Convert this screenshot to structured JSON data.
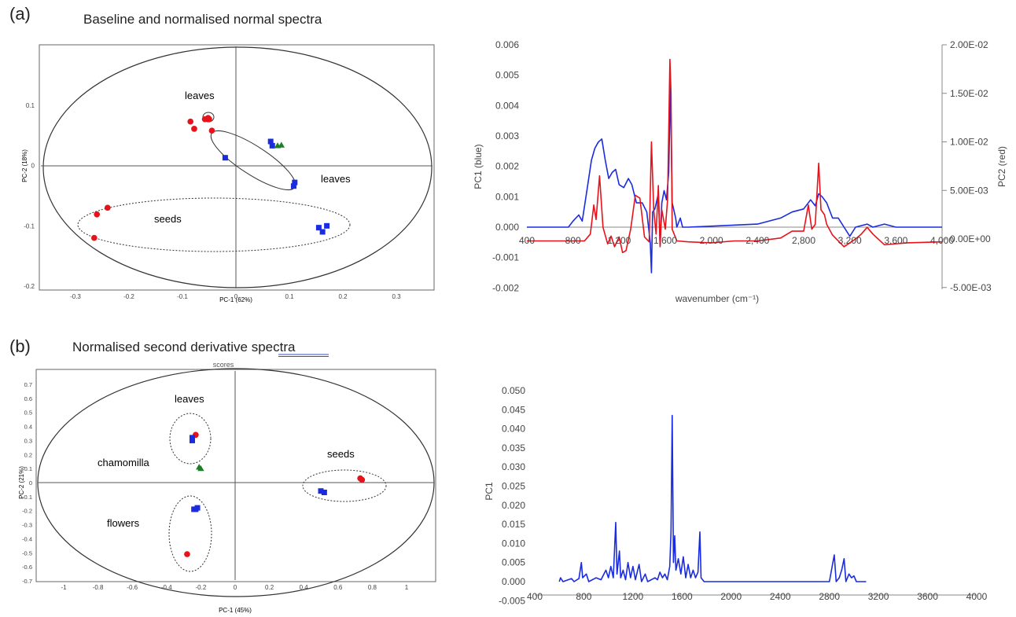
{
  "panel_a": {
    "letter": "(a)",
    "title": "Baseline and normalised normal spectra"
  },
  "panel_b": {
    "letter": "(b)",
    "title": "Normalised second derivative spectra",
    "partial_text": "scores"
  },
  "colors": {
    "red": "#e8121a",
    "blue": "#1a2be0",
    "green": "#1d7d28",
    "cyan": "#22a5e0",
    "axis": "#666666"
  },
  "chart_data": [
    {
      "type": "scatter",
      "xlabel": "PC-1 (62%)",
      "ylabel": "PC-2 (18%)",
      "xlim": [
        -0.37,
        0.37
      ],
      "ylim": [
        -0.2,
        0.2
      ],
      "x_ticks": [
        "-0.3",
        "-0.2",
        "-0.1",
        "0",
        "0.1",
        "0.2",
        "0.3"
      ],
      "y_ticks": [
        "0.1",
        "0",
        "-0.1",
        "-0.2"
      ],
      "annotations": [
        "leaves",
        "leaves",
        "seeds"
      ],
      "series": [
        {
          "marker": "circle",
          "color": "red",
          "points": [
            [
              -0.085,
              0.073
            ],
            [
              -0.078,
              0.061
            ],
            [
              -0.058,
              0.077
            ],
            [
              -0.052,
              0.079
            ],
            [
              -0.05,
              0.077
            ],
            [
              -0.045,
              0.058
            ],
            [
              -0.24,
              -0.07
            ],
            [
              -0.26,
              -0.081
            ],
            [
              -0.265,
              -0.12
            ]
          ]
        },
        {
          "marker": "square",
          "color": "blue",
          "points": [
            [
              0.065,
              0.04
            ],
            [
              0.068,
              0.033
            ],
            [
              -0.02,
              0.013
            ],
            [
              0.11,
              -0.028
            ],
            [
              0.108,
              -0.034
            ],
            [
              0.155,
              -0.103
            ],
            [
              0.162,
              -0.11
            ],
            [
              0.17,
              -0.1
            ]
          ]
        },
        {
          "marker": "triangle",
          "color": "green",
          "points": [
            [
              0.078,
              0.033
            ],
            [
              0.085,
              0.034
            ]
          ]
        }
      ]
    },
    {
      "type": "line",
      "xlabel": "wavenumber (cm⁻¹)",
      "ylabel": "PC1 (blue)",
      "y2label": "PC2 (red)",
      "xlim": [
        400,
        4000
      ],
      "ylim": [
        -0.002,
        0.006
      ],
      "y2lim": [
        -0.005,
        0.02
      ],
      "x_ticks": [
        "400",
        "800",
        "1,200",
        "1,600",
        "2,000",
        "2,400",
        "2,800",
        "3,200",
        "3,600",
        "4,000"
      ],
      "y_ticks": [
        "0.006",
        "0.005",
        "0.004",
        "0.003",
        "0.002",
        "0.001",
        "0.000",
        "-0.001",
        "-0.002"
      ],
      "y2_ticks": [
        "2.00E-02",
        "1.50E-02",
        "1.00E-02",
        "5.00E-03",
        "0.00E+00",
        "-5.00E-03"
      ],
      "series": [
        {
          "color": "blue",
          "axis": "left",
          "points": [
            [
              400,
              0
            ],
            [
              760,
              0
            ],
            [
              800,
              0.0002
            ],
            [
              850,
              0.0004
            ],
            [
              880,
              0.0002
            ],
            [
              920,
              0.0012
            ],
            [
              960,
              0.0022
            ],
            [
              990,
              0.0026
            ],
            [
              1020,
              0.0028
            ],
            [
              1050,
              0.0029
            ],
            [
              1080,
              0.0022
            ],
            [
              1110,
              0.0016
            ],
            [
              1140,
              0.0018
            ],
            [
              1170,
              0.0019
            ],
            [
              1200,
              0.0014
            ],
            [
              1240,
              0.0013
            ],
            [
              1280,
              0.0016
            ],
            [
              1310,
              0.0014
            ],
            [
              1350,
              0.0008
            ],
            [
              1400,
              0.0008
            ],
            [
              1440,
              0.0005
            ],
            [
              1470,
              -0.0005
            ],
            [
              1480,
              -0.0015
            ],
            [
              1490,
              0.0005
            ],
            [
              1510,
              0.0006
            ],
            [
              1540,
              0.0011
            ],
            [
              1555,
              -0.0006
            ],
            [
              1570,
              0.0008
            ],
            [
              1590,
              0.0012
            ],
            [
              1610,
              0.0009
            ],
            [
              1630,
              0.0018
            ],
            [
              1645,
              0.0047
            ],
            [
              1660,
              0.0008
            ],
            [
              1690,
              0.0003
            ],
            [
              1700,
              0
            ],
            [
              1730,
              0.0003
            ],
            [
              1750,
              0
            ],
            [
              1800,
              0
            ],
            [
              2400,
              0.0001
            ],
            [
              2600,
              0.0003
            ],
            [
              2700,
              0.0005
            ],
            [
              2800,
              0.0006
            ],
            [
              2860,
              0.0009
            ],
            [
              2900,
              0.0007
            ],
            [
              2930,
              0.0011
            ],
            [
              2960,
              0.001
            ],
            [
              3000,
              0.0008
            ],
            [
              3050,
              0.0003
            ],
            [
              3100,
              0.0003
            ],
            [
              3150,
              0
            ],
            [
              3200,
              -0.0003
            ],
            [
              3250,
              0
            ],
            [
              3350,
              0.0001
            ],
            [
              3400,
              0
            ],
            [
              3500,
              0.0001
            ],
            [
              3600,
              0
            ],
            [
              4000,
              0
            ]
          ]
        },
        {
          "color": "red",
          "axis": "right",
          "points": [
            [
              400,
              -0.0002
            ],
            [
              900,
              -0.0002
            ],
            [
              950,
              0.0005
            ],
            [
              980,
              0.0035
            ],
            [
              1000,
              0.002
            ],
            [
              1030,
              0.0065
            ],
            [
              1060,
              0.0012
            ],
            [
              1100,
              -0.0005
            ],
            [
              1130,
              0.0003
            ],
            [
              1160,
              -0.0008
            ],
            [
              1200,
              0.0002
            ],
            [
              1230,
              -0.0014
            ],
            [
              1260,
              -0.0012
            ],
            [
              1300,
              0.001
            ],
            [
              1340,
              0.0045
            ],
            [
              1380,
              0.0042
            ],
            [
              1420,
              0.0002
            ],
            [
              1460,
              -0.0003
            ],
            [
              1480,
              0.01
            ],
            [
              1500,
              0.003
            ],
            [
              1520,
              0.0005
            ],
            [
              1540,
              0.0055
            ],
            [
              1555,
              -0.0008
            ],
            [
              1570,
              0.003
            ],
            [
              1600,
              0.001
            ],
            [
              1620,
              0.004
            ],
            [
              1640,
              0.0185
            ],
            [
              1650,
              0.015
            ],
            [
              1660,
              0.001
            ],
            [
              1700,
              -0.0002
            ],
            [
              1800,
              -0.0003
            ],
            [
              2000,
              -0.0004
            ],
            [
              2200,
              -0.0002
            ],
            [
              2400,
              -0.0002
            ],
            [
              2600,
              0.0001
            ],
            [
              2700,
              0.0008
            ],
            [
              2800,
              0.0008
            ],
            [
              2840,
              0.0035
            ],
            [
              2870,
              0.001
            ],
            [
              2900,
              0.0015
            ],
            [
              2930,
              0.0078
            ],
            [
              2950,
              0.003
            ],
            [
              2980,
              0.0025
            ],
            [
              3000,
              0.0015
            ],
            [
              3050,
              0.0004
            ],
            [
              3150,
              -0.0008
            ],
            [
              3250,
              0
            ],
            [
              3300,
              0.0005
            ],
            [
              3350,
              0.0012
            ],
            [
              3400,
              0.0005
            ],
            [
              3500,
              -0.0006
            ],
            [
              3700,
              -0.0004
            ],
            [
              4000,
              -0.0003
            ]
          ]
        }
      ]
    },
    {
      "type": "scatter",
      "xlabel": "PC-1 (45%)",
      "ylabel": "PC-2 (21%)",
      "xlim": [
        -1.15,
        1.15
      ],
      "ylim": [
        -0.78,
        0.78
      ],
      "x_ticks": [
        "-1",
        "-0.8",
        "-0.6",
        "-0.4",
        "-0.2",
        "0",
        "0.2",
        "0.4",
        "0.6",
        "0.8",
        "1"
      ],
      "y_ticks": [
        "0.7",
        "0.6",
        "0.5",
        "0.4",
        "0.3",
        "0.2",
        "0.1",
        "0",
        "-0.1",
        "-0.2",
        "-0.3",
        "-0.4",
        "-0.5",
        "-0.6",
        "-0.7"
      ],
      "annotations": [
        "leaves",
        "chamomilla",
        "flowers",
        "seeds"
      ],
      "series": [
        {
          "marker": "circle",
          "color": "red",
          "points": [
            [
              -0.23,
              0.34
            ],
            [
              -0.28,
              -0.51
            ],
            [
              0.73,
              0.03
            ],
            [
              0.74,
              0.02
            ]
          ]
        },
        {
          "marker": "square",
          "color": "blue",
          "points": [
            [
              -0.25,
              0.32
            ],
            [
              -0.25,
              0.3
            ],
            [
              -0.24,
              -0.19
            ],
            [
              -0.22,
              -0.18
            ],
            [
              -0.23,
              -0.19
            ],
            [
              0.5,
              -0.06
            ],
            [
              0.52,
              -0.07
            ]
          ]
        },
        {
          "marker": "triangle",
          "color": "green",
          "points": [
            [
              -0.21,
              0.11
            ],
            [
              -0.2,
              0.1
            ]
          ]
        }
      ]
    },
    {
      "type": "line",
      "xlabel": "",
      "ylabel": "PC1",
      "xlim": [
        400,
        4000
      ],
      "ylim": [
        -0.005,
        0.05
      ],
      "x_ticks": [
        "400",
        "800",
        "1200",
        "1600",
        "2000",
        "2400",
        "2800",
        "3200",
        "3600",
        "4000"
      ],
      "y_ticks": [
        "0.050",
        "0.045",
        "0.040",
        "0.035",
        "0.030",
        "0.025",
        "0.020",
        "0.015",
        "0.010",
        "0.005",
        "0.000",
        "-0.005"
      ],
      "series": [
        {
          "color": "blue",
          "points": [
            [
              600,
              0
            ],
            [
              610,
              0.001
            ],
            [
              630,
              0
            ],
            [
              700,
              0.0008
            ],
            [
              720,
              0
            ],
            [
              760,
              0.0008
            ],
            [
              780,
              0.005
            ],
            [
              790,
              0.001
            ],
            [
              820,
              0.002
            ],
            [
              840,
              0
            ],
            [
              900,
              0.001
            ],
            [
              940,
              0.0005
            ],
            [
              980,
              0.003
            ],
            [
              1000,
              0.001
            ],
            [
              1020,
              0.004
            ],
            [
              1040,
              0.001
            ],
            [
              1060,
              0.0155
            ],
            [
              1070,
              0.002
            ],
            [
              1090,
              0.008
            ],
            [
              1100,
              0.001
            ],
            [
              1120,
              0.003
            ],
            [
              1140,
              0.0005
            ],
            [
              1160,
              0.005
            ],
            [
              1180,
              0.001
            ],
            [
              1200,
              0.004
            ],
            [
              1220,
              0.0005
            ],
            [
              1250,
              0.0045
            ],
            [
              1270,
              0
            ],
            [
              1300,
              0.002
            ],
            [
              1320,
              0
            ],
            [
              1380,
              0.001
            ],
            [
              1400,
              0.0005
            ],
            [
              1420,
              0.0025
            ],
            [
              1440,
              0.001
            ],
            [
              1460,
              0.002
            ],
            [
              1480,
              0.0005
            ],
            [
              1500,
              0.004
            ],
            [
              1510,
              0.013
            ],
            [
              1520,
              0.0435
            ],
            [
              1530,
              0.005
            ],
            [
              1540,
              0.012
            ],
            [
              1550,
              0.003
            ],
            [
              1570,
              0.006
            ],
            [
              1590,
              0.002
            ],
            [
              1610,
              0.0065
            ],
            [
              1630,
              0.001
            ],
            [
              1650,
              0.0045
            ],
            [
              1670,
              0.001
            ],
            [
              1690,
              0.003
            ],
            [
              1710,
              0.001
            ],
            [
              1730,
              0.0025
            ],
            [
              1745,
              0.013
            ],
            [
              1755,
              0.001
            ],
            [
              1780,
              0
            ],
            [
              2800,
              0
            ],
            [
              2840,
              0.007
            ],
            [
              2855,
              0
            ],
            [
              2880,
              0.001
            ],
            [
              2900,
              0.003
            ],
            [
              2920,
              0.006
            ],
            [
              2935,
              0
            ],
            [
              2960,
              0.002
            ],
            [
              2980,
              0.001
            ],
            [
              3000,
              0.0015
            ],
            [
              3020,
              0
            ],
            [
              3100,
              0
            ]
          ]
        }
      ]
    }
  ]
}
